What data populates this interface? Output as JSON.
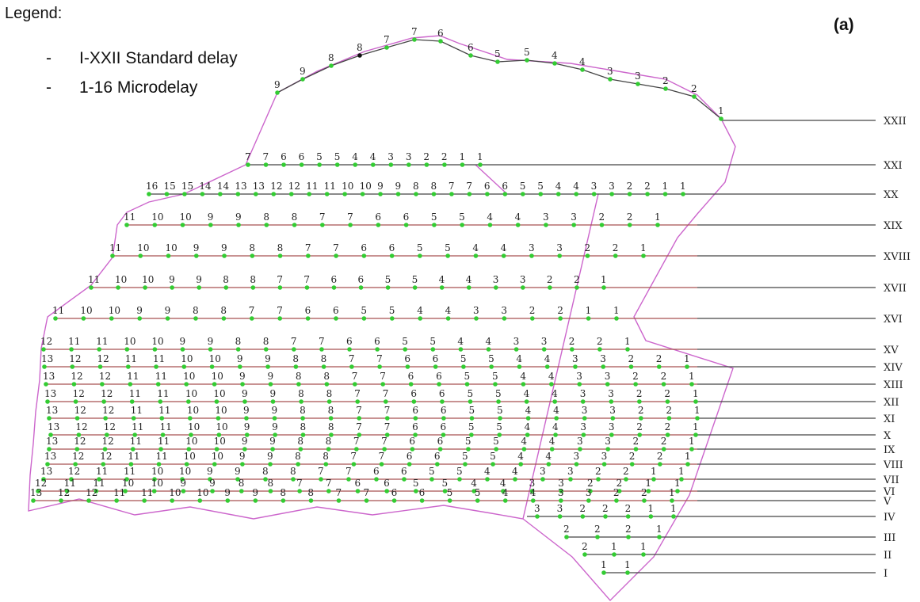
{
  "legend": {
    "title": "Legend:",
    "items": [
      {
        "dash": "-",
        "text": "I-XXII Standard delay"
      },
      {
        "dash": "-",
        "text": "1-16 Microdelay"
      }
    ]
  },
  "panel_label": "(a)",
  "colors": {
    "outline": "#cc66cc",
    "row_line": "#444444",
    "row_line_red": "#a65050",
    "hole": "#33cc33",
    "hole_dark": "#111111",
    "text": "#222222"
  },
  "rows": [
    {
      "label": "XXII",
      "seq": [
        9,
        9,
        8,
        8,
        7,
        7,
        6,
        6,
        5,
        5,
        4,
        4,
        3,
        3,
        2,
        2,
        1
      ]
    },
    {
      "label": "XXI",
      "seq": [
        7,
        7,
        6,
        6,
        5,
        5,
        4,
        4,
        3,
        3,
        2,
        2,
        1,
        1
      ]
    },
    {
      "label": "XX",
      "seq": [
        16,
        15,
        15,
        14,
        14,
        13,
        13,
        12,
        12,
        11,
        11,
        10,
        10,
        9,
        9,
        8,
        8,
        7,
        7,
        6,
        6,
        5,
        5,
        4,
        4,
        3,
        3,
        2,
        2,
        1,
        1
      ]
    },
    {
      "label": "XIX",
      "seq": [
        11,
        10,
        10,
        9,
        9,
        8,
        8,
        7,
        7,
        6,
        6,
        5,
        5,
        4,
        4,
        3,
        3,
        2,
        2,
        1
      ]
    },
    {
      "label": "XVIII",
      "seq": [
        11,
        10,
        10,
        9,
        9,
        8,
        8,
        7,
        7,
        6,
        6,
        5,
        5,
        4,
        4,
        3,
        3,
        2,
        2,
        1
      ]
    },
    {
      "label": "XVII",
      "seq": [
        11,
        10,
        10,
        9,
        9,
        8,
        8,
        7,
        7,
        6,
        6,
        5,
        5,
        4,
        4,
        3,
        3,
        2,
        2,
        1
      ]
    },
    {
      "label": "XVI",
      "seq": [
        11,
        10,
        10,
        9,
        9,
        8,
        8,
        7,
        7,
        6,
        6,
        5,
        5,
        4,
        4,
        3,
        3,
        2,
        2,
        1,
        1
      ]
    },
    {
      "label": "XV",
      "seq": [
        12,
        11,
        11,
        10,
        10,
        9,
        9,
        8,
        8,
        7,
        7,
        6,
        6,
        5,
        5,
        4,
        4,
        3,
        3,
        2,
        2,
        1
      ]
    },
    {
      "label": "XIV",
      "seq": [
        13,
        12,
        12,
        11,
        11,
        10,
        10,
        9,
        9,
        8,
        8,
        7,
        7,
        6,
        6,
        5,
        5,
        4,
        4,
        3,
        3,
        2,
        2,
        1
      ]
    },
    {
      "label": "XIII",
      "seq": [
        13,
        12,
        12,
        11,
        11,
        10,
        10,
        9,
        9,
        8,
        8,
        7,
        7,
        6,
        6,
        5,
        5,
        4,
        4,
        3,
        3,
        2,
        2,
        1
      ]
    },
    {
      "label": "XII",
      "seq": [
        13,
        12,
        12,
        11,
        11,
        10,
        10,
        9,
        9,
        8,
        8,
        7,
        7,
        6,
        6,
        5,
        5,
        4,
        4,
        3,
        3,
        2,
        2,
        1
      ]
    },
    {
      "label": "XI",
      "seq": [
        13,
        12,
        12,
        11,
        11,
        10,
        10,
        9,
        9,
        8,
        8,
        7,
        7,
        6,
        6,
        5,
        5,
        4,
        4,
        3,
        3,
        2,
        2,
        1
      ]
    },
    {
      "label": "X",
      "seq": [
        13,
        12,
        12,
        11,
        11,
        10,
        10,
        9,
        9,
        8,
        8,
        7,
        7,
        6,
        6,
        5,
        5,
        4,
        4,
        3,
        3,
        2,
        2,
        1
      ]
    },
    {
      "label": "IX",
      "seq": [
        13,
        12,
        12,
        11,
        11,
        10,
        10,
        9,
        9,
        8,
        8,
        7,
        7,
        6,
        6,
        5,
        5,
        4,
        4,
        3,
        3,
        2,
        2,
        1
      ]
    },
    {
      "label": "VIII",
      "seq": [
        13,
        12,
        12,
        11,
        11,
        10,
        10,
        9,
        9,
        8,
        8,
        7,
        7,
        6,
        6,
        5,
        5,
        4,
        4,
        3,
        3,
        2,
        2,
        1
      ]
    },
    {
      "label": "VII",
      "seq": [
        13,
        12,
        11,
        11,
        10,
        10,
        9,
        9,
        8,
        8,
        7,
        7,
        6,
        6,
        5,
        5,
        4,
        4,
        3,
        3,
        2,
        2,
        1,
        1
      ]
    },
    {
      "label": "VI",
      "seq": [
        12,
        11,
        11,
        10,
        10,
        9,
        9,
        8,
        8,
        7,
        7,
        6,
        6,
        5,
        5,
        4,
        4,
        3,
        3,
        2,
        2,
        1,
        1
      ]
    },
    {
      "label": "V",
      "seq": [
        13,
        12,
        12,
        11,
        11,
        10,
        10,
        9,
        9,
        8,
        8,
        7,
        7,
        6,
        6,
        5,
        5,
        4,
        4,
        3,
        3,
        2,
        2,
        1
      ]
    },
    {
      "label": "IV",
      "seq": [
        3,
        3,
        2,
        2,
        2,
        1,
        1
      ]
    },
    {
      "label": "III",
      "seq": [
        2,
        2,
        2,
        1
      ]
    },
    {
      "label": "II",
      "seq": [
        2,
        1,
        1
      ]
    },
    {
      "label": "I",
      "seq": [
        1,
        1
      ]
    }
  ]
}
